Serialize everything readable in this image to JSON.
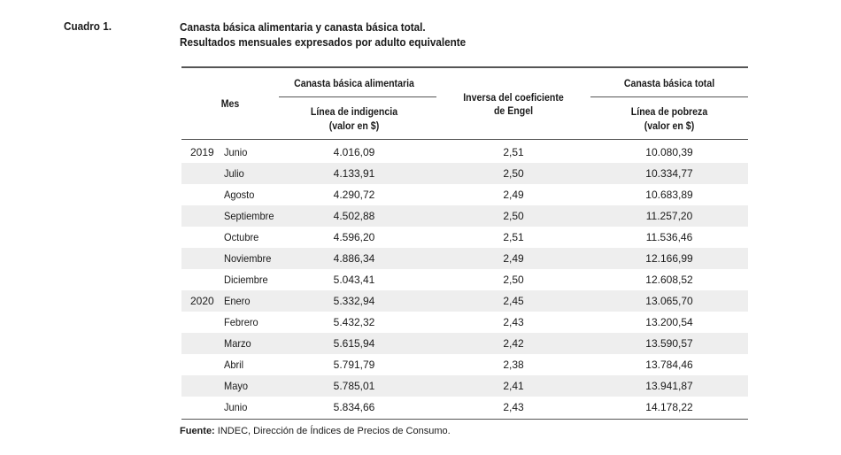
{
  "label": "Cuadro 1.",
  "title": "Canasta básica alimentaria y canasta básica total.",
  "subtitle": "Resultados mensuales expresados por adulto equivalente",
  "headers": {
    "mes": "Mes",
    "cba_group": "Canasta básica alimentaria",
    "cba_line1": "Línea de indigencia",
    "cba_line2": "(valor en $)",
    "engel_line1": "Inversa del coeficiente",
    "engel_line2": "de Engel",
    "cbt_group": "Canasta básica total",
    "cbt_line1": "Línea de pobreza",
    "cbt_line2": "(valor en $)"
  },
  "rows": [
    {
      "year": "2019",
      "month": "Junio",
      "cba": "4.016,09",
      "engel": "2,51",
      "cbt": "10.080,39"
    },
    {
      "year": "",
      "month": "Julio",
      "cba": "4.133,91",
      "engel": "2,50",
      "cbt": "10.334,77"
    },
    {
      "year": "",
      "month": "Agosto",
      "cba": "4.290,72",
      "engel": "2,49",
      "cbt": "10.683,89"
    },
    {
      "year": "",
      "month": "Septiembre",
      "cba": "4.502,88",
      "engel": "2,50",
      "cbt": "11.257,20"
    },
    {
      "year": "",
      "month": "Octubre",
      "cba": "4.596,20",
      "engel": "2,51",
      "cbt": "11.536,46"
    },
    {
      "year": "",
      "month": "Noviembre",
      "cba": "4.886,34",
      "engel": "2,49",
      "cbt": "12.166,99"
    },
    {
      "year": "",
      "month": "Diciembre",
      "cba": "5.043,41",
      "engel": "2,50",
      "cbt": "12.608,52"
    },
    {
      "year": "2020",
      "month": "Enero",
      "cba": "5.332,94",
      "engel": "2,45",
      "cbt": "13.065,70"
    },
    {
      "year": "",
      "month": "Febrero",
      "cba": "5.432,32",
      "engel": "2,43",
      "cbt": "13.200,54"
    },
    {
      "year": "",
      "month": "Marzo",
      "cba": "5.615,94",
      "engel": "2,42",
      "cbt": "13.590,57"
    },
    {
      "year": "",
      "month": "Abril",
      "cba": "5.791,79",
      "engel": "2,38",
      "cbt": "13.784,46"
    },
    {
      "year": "",
      "month": "Mayo",
      "cba": "5.785,01",
      "engel": "2,41",
      "cbt": "13.941,87"
    },
    {
      "year": "",
      "month": "Junio",
      "cba": "5.834,66",
      "engel": "2,43",
      "cbt": "14.178,22"
    }
  ],
  "source_label": "Fuente:",
  "source_text": " INDEC, Dirección de Índices de Precios de Consumo."
}
